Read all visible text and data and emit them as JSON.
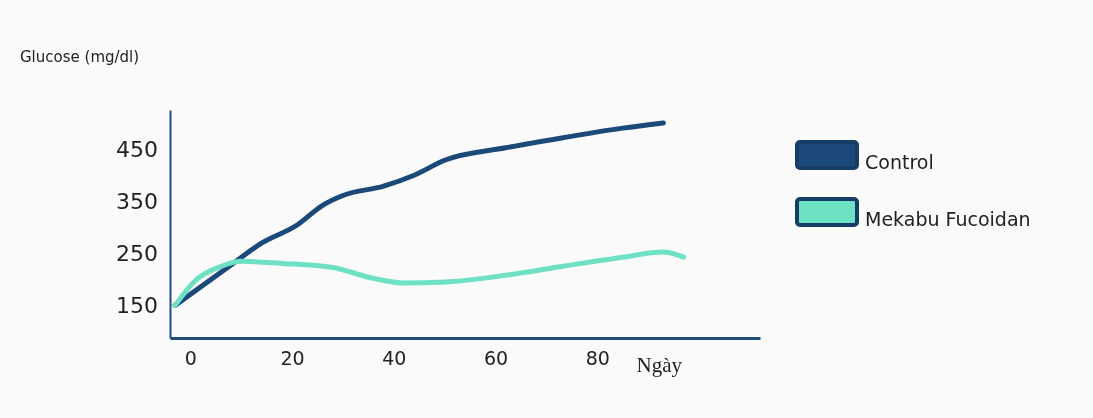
{
  "chart_data": {
    "type": "line",
    "ylabel": "Glucose (mg/dl)",
    "xlabel": "Ngày",
    "xlim": [
      -4,
      112
    ],
    "xticks": [
      0,
      20,
      40,
      60,
      80
    ],
    "ylim": [
      87,
      527
    ],
    "yticks": [
      150,
      250,
      350,
      450
    ],
    "grid": false,
    "legend": "right",
    "line_style": "solid",
    "marker": "none",
    "series": [
      {
        "name": "Control",
        "color": "#1b4a7a",
        "x": [
          -3,
          8,
          14,
          21,
          26,
          30,
          38,
          44,
          50,
          62,
          73,
          85,
          93
        ],
        "values": [
          150,
          228,
          270,
          305,
          343,
          362,
          380,
          401,
          430,
          454,
          473,
          492,
          502
        ]
      },
      {
        "name": "Mekabu Fucoidan",
        "color": "#6ee0c3",
        "x": [
          -3,
          1,
          6,
          10,
          18,
          28,
          36,
          42,
          50,
          62,
          73,
          85,
          93,
          97
        ],
        "values": [
          150,
          198,
          225,
          235,
          231,
          223,
          202,
          193,
          195,
          208,
          225,
          243,
          253,
          243
        ]
      }
    ]
  }
}
